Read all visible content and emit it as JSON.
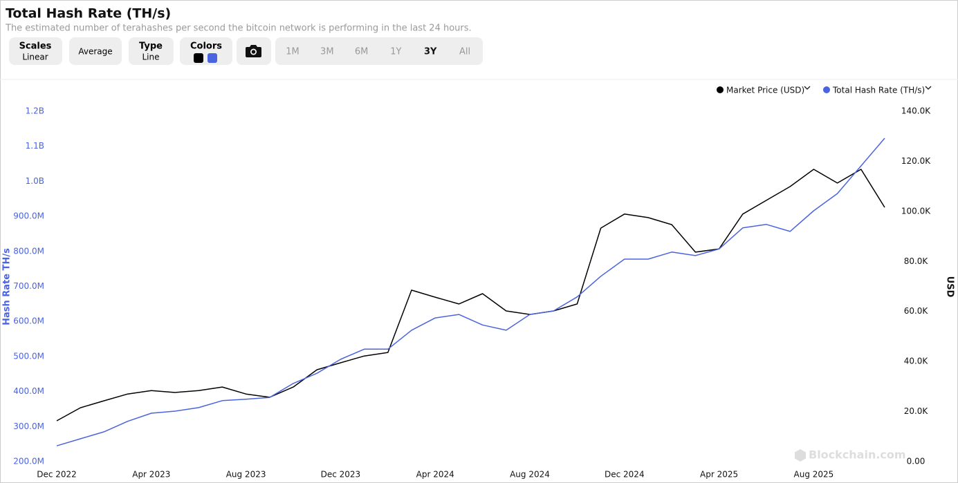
{
  "chart_data": {
    "type": "line",
    "title": "Total Hash Rate (TH/s)",
    "subtitle": "The estimated number of terahashes per second the bitcoin network is performing in the last 24 hours.",
    "controls": {
      "scales": {
        "label": "Scales",
        "value": "Linear"
      },
      "average": "Average",
      "type": {
        "label": "Type",
        "value": "Line"
      },
      "colors": "Colors",
      "ranges": [
        "1M",
        "3M",
        "6M",
        "1Y",
        "3Y",
        "All"
      ],
      "selected_range": 4
    },
    "x": [
      "2022-12",
      "2023-01",
      "2023-02",
      "2023-03",
      "2023-04",
      "2023-05",
      "2023-06",
      "2023-07",
      "2023-08",
      "2023-09",
      "2023-10",
      "2023-11",
      "2023-12",
      "2024-01",
      "2024-02",
      "2024-03",
      "2024-04",
      "2024-05",
      "2024-06",
      "2024-07",
      "2024-08",
      "2024-09",
      "2024-10",
      "2024-11",
      "2024-12",
      "2025-01",
      "2025-02",
      "2025-03",
      "2025-04",
      "2025-05",
      "2025-06",
      "2025-07",
      "2025-08",
      "2025-09",
      "2025-10",
      "2025-11"
    ],
    "xlim": [
      "2022-12",
      "2025-11"
    ],
    "xticks": [
      {
        "value": "2022-12",
        "label": "Dec 2022"
      },
      {
        "value": "2023-04",
        "label": "Apr 2023"
      },
      {
        "value": "2023-08",
        "label": "Aug 2023"
      },
      {
        "value": "2023-12",
        "label": "Dec 2023"
      },
      {
        "value": "2024-04",
        "label": "Apr 2024"
      },
      {
        "value": "2024-08",
        "label": "Aug 2024"
      },
      {
        "value": "2024-12",
        "label": "Dec 2024"
      },
      {
        "value": "2025-04",
        "label": "Apr 2025"
      },
      {
        "value": "2025-08",
        "label": "Aug 2025"
      }
    ],
    "series": [
      {
        "name": "Market Price (USD)",
        "color": "#000000",
        "axis": "y2",
        "values": [
          16300,
          21500,
          24300,
          27000,
          28400,
          27600,
          28400,
          29800,
          27000,
          25700,
          29800,
          36700,
          39500,
          42200,
          43600,
          68500,
          65700,
          63000,
          67100,
          60200,
          58800,
          60200,
          63000,
          93300,
          98900,
          97500,
          94700,
          83700,
          85000,
          98900,
          104400,
          109900,
          116800,
          111300,
          116800,
          101600
        ]
      },
      {
        "name": "Total Hash Rate (TH/s)",
        "color": "#4a63e0",
        "values": [
          245000000,
          265000000,
          285000000,
          315000000,
          338000000,
          344000000,
          354000000,
          374000000,
          378000000,
          383000000,
          423000000,
          452000000,
          492000000,
          521000000,
          521000000,
          575000000,
          610000000,
          620000000,
          590000000,
          575000000,
          620000000,
          630000000,
          670000000,
          729000000,
          778000000,
          778000000,
          798000000,
          788000000,
          807000000,
          867000000,
          877000000,
          857000000,
          916000000,
          965000000,
          1044000000,
          1123000000
        ]
      }
    ],
    "ylim": [
      200000000,
      1200000000
    ],
    "yticks": [
      {
        "value": 200000000,
        "label": "200.0M"
      },
      {
        "value": 300000000,
        "label": "300.0M"
      },
      {
        "value": 400000000,
        "label": "400.0M"
      },
      {
        "value": 500000000,
        "label": "500.0M"
      },
      {
        "value": 600000000,
        "label": "600.0M"
      },
      {
        "value": 700000000,
        "label": "700.0M"
      },
      {
        "value": 800000000,
        "label": "800.0M"
      },
      {
        "value": 900000000,
        "label": "900.0M"
      },
      {
        "value": 1000000000,
        "label": "1.0B"
      },
      {
        "value": 1100000000,
        "label": "1.1B"
      },
      {
        "value": 1200000000,
        "label": "1.2B"
      }
    ],
    "y2lim": [
      0,
      140000
    ],
    "y2ticks": [
      {
        "value": 0,
        "label": "0.00"
      },
      {
        "value": 20000,
        "label": "20.0K"
      },
      {
        "value": 40000,
        "label": "40.0K"
      },
      {
        "value": 60000,
        "label": "60.0K"
      },
      {
        "value": 80000,
        "label": "80.0K"
      },
      {
        "value": 100000,
        "label": "100.0K"
      },
      {
        "value": 120000,
        "label": "120.0K"
      },
      {
        "value": 140000,
        "label": "140.0K"
      }
    ],
    "ylabel": "Hash Rate TH/s",
    "y2label": "USD",
    "grid": false,
    "legend": "top-right",
    "watermark": "Blockchain.com"
  }
}
